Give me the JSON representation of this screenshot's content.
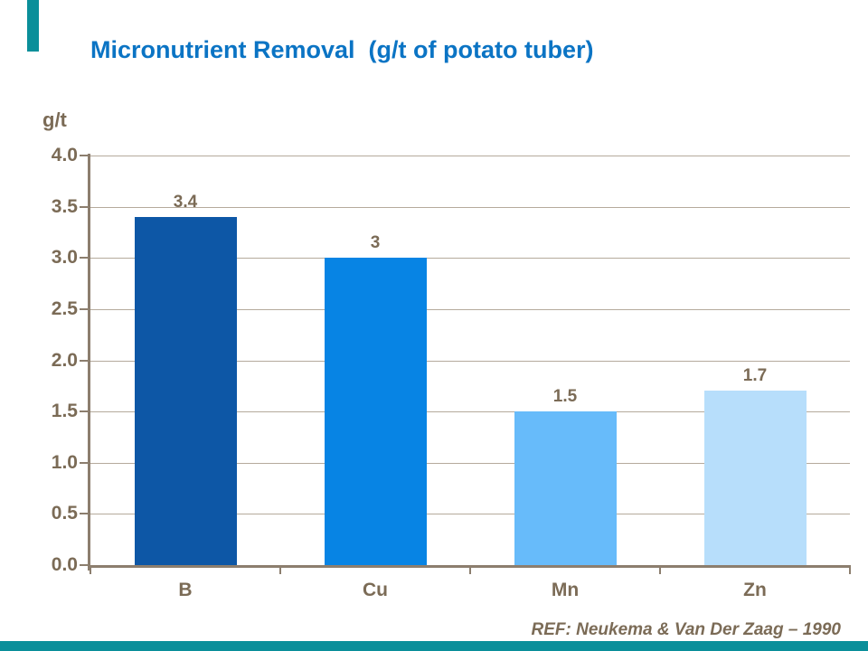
{
  "slide": {
    "title": "Micronutrient Removal  (g/t of potato tuber)",
    "reference": "REF: Neukema & Van Der Zaag – 1990",
    "colors": {
      "background": "#FFFFFF",
      "title_blue": "#0B74C4",
      "text_taupe": "#7B6B56",
      "axis": "#8C7E6E",
      "gridline": "#B5AA9C",
      "accent_teal": "#0A8F9A"
    }
  },
  "chart_data": {
    "type": "bar",
    "title": "Micronutrient Removal (g/t of potato tuber)",
    "xlabel": "",
    "ylabel": "g/t",
    "categories": [
      "B",
      "Cu",
      "Mn",
      "Zn"
    ],
    "values": [
      3.4,
      3,
      1.5,
      1.7
    ],
    "value_labels": [
      "3.4",
      "3",
      "1.5",
      "1.7"
    ],
    "bar_colors": [
      "#0D57A6",
      "#0784E4",
      "#67BBFA",
      "#B7DEFB"
    ],
    "ylim": [
      0,
      4
    ],
    "ytick_step": 0.5,
    "ytick_labels": [
      "0.0",
      "0.5",
      "1.0",
      "1.5",
      "2.0",
      "2.5",
      "3.0",
      "3.5",
      "4.0"
    ],
    "grid": true,
    "legend_position": "none",
    "reference": "REF: Neukema & Van Der Zaag – 1990"
  }
}
